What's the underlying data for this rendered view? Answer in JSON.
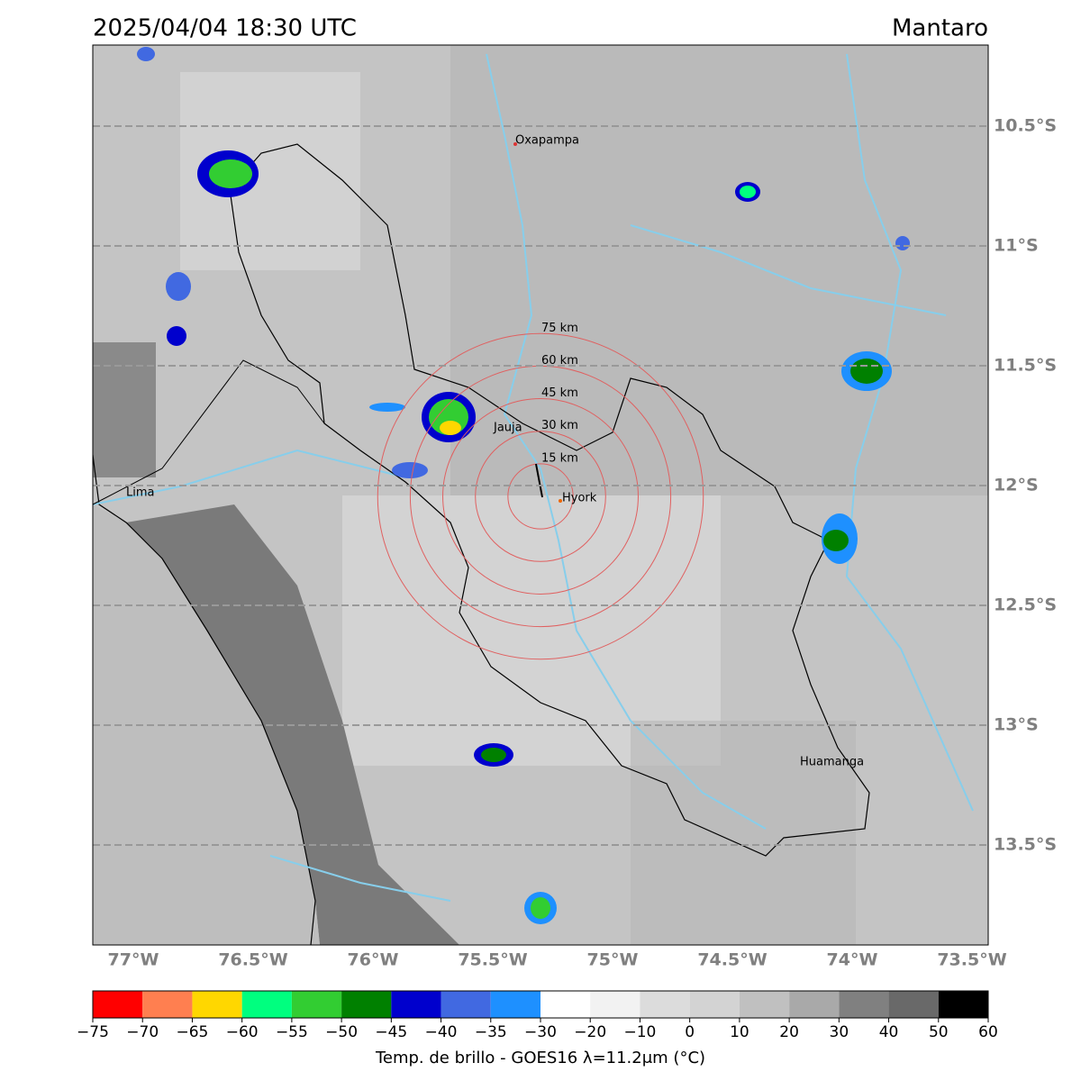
{
  "header": {
    "title": "2025/04/04 18:30 UTC",
    "region": "Mantaro"
  },
  "map": {
    "lat_ticks": [
      {
        "value": -10.5,
        "label": "10.5°S"
      },
      {
        "value": -11,
        "label": "11°S"
      },
      {
        "value": -11.5,
        "label": "11.5°S"
      },
      {
        "value": -12,
        "label": "12°S"
      },
      {
        "value": -12.5,
        "label": "12.5°S"
      },
      {
        "value": -13,
        "label": "13°S"
      },
      {
        "value": -13.5,
        "label": "13.5°S"
      }
    ],
    "lon_ticks": [
      {
        "value": -77,
        "label": "77°W"
      },
      {
        "value": -76.5,
        "label": "76.5°W"
      },
      {
        "value": -76,
        "label": "76°W"
      },
      {
        "value": -75.5,
        "label": "75.5°W"
      },
      {
        "value": -75,
        "label": "75°W"
      },
      {
        "value": -74.5,
        "label": "74.5°W"
      },
      {
        "value": -74,
        "label": "74°W"
      },
      {
        "value": -73.5,
        "label": "73.5°W"
      }
    ],
    "places": [
      "Oxapampa",
      "Jauja",
      "Hyork",
      "Lima",
      "Huamanga"
    ],
    "rings": [
      {
        "value": 15,
        "label": "15 km"
      },
      {
        "value": 30,
        "label": "30 km"
      },
      {
        "value": 45,
        "label": "45 km"
      },
      {
        "value": 60,
        "label": "60 km"
      },
      {
        "value": 75,
        "label": "75 km"
      }
    ]
  },
  "colorbar": {
    "label": "Temp. de brillo - GOES16 λ=11.2μm (°C)",
    "ticks": [
      {
        "value": -75,
        "label": "−75"
      },
      {
        "value": -70,
        "label": "−70"
      },
      {
        "value": -65,
        "label": "−65"
      },
      {
        "value": -60,
        "label": "−60"
      },
      {
        "value": -55,
        "label": "−55"
      },
      {
        "value": -50,
        "label": "−50"
      },
      {
        "value": -45,
        "label": "−45"
      },
      {
        "value": -40,
        "label": "−40"
      },
      {
        "value": -35,
        "label": "−35"
      },
      {
        "value": -30,
        "label": "−30"
      },
      {
        "value": -20,
        "label": "−20"
      },
      {
        "value": -10,
        "label": "−10"
      },
      0,
      10,
      20,
      30,
      40,
      50,
      60
    ],
    "colors": [
      "#ff0000",
      "#ff7f50",
      "#ffd700",
      "#00ff7f",
      "#32cd32",
      "#008000",
      "#0000cd",
      "#4169e1",
      "#1e90ff",
      "#ffffff",
      "#f2f2f2",
      "#dcdcdc",
      "#d3d3d3",
      "#c0c0c0",
      "#a9a9a9",
      "#808080",
      "#696969",
      "#000000"
    ]
  }
}
